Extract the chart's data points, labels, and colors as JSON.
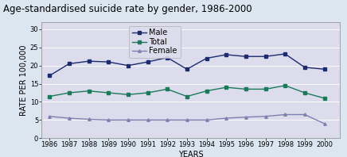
{
  "title": "Age-standardised suicide rate by gender, 1986-2000",
  "years": [
    1986,
    1987,
    1988,
    1989,
    1990,
    1991,
    1992,
    1993,
    1994,
    1995,
    1996,
    1997,
    1998,
    1999,
    2000
  ],
  "male": [
    17.2,
    20.5,
    21.2,
    21.0,
    20.0,
    21.0,
    22.2,
    19.0,
    22.0,
    23.0,
    22.5,
    22.5,
    23.2,
    19.5,
    19.0
  ],
  "total": [
    11.5,
    12.5,
    13.0,
    12.5,
    12.0,
    12.5,
    13.5,
    11.5,
    13.0,
    14.0,
    13.5,
    13.5,
    14.5,
    12.5,
    11.0
  ],
  "female": [
    6.0,
    5.5,
    5.2,
    5.0,
    5.0,
    5.0,
    5.0,
    5.0,
    5.0,
    5.5,
    5.8,
    6.0,
    6.5,
    6.5,
    4.0
  ],
  "male_color": "#1c2b6e",
  "total_color": "#1a7a5a",
  "female_color": "#8080b0",
  "plot_bg_color": "#dcdcec",
  "outer_bg_color": "#dce6f1",
  "title_bg_color": "#f0f0f0",
  "ylabel": "RATE PER 100,000",
  "xlabel": "YEARS",
  "ylim": [
    0,
    32
  ],
  "yticks": [
    0,
    5,
    10,
    15,
    20,
    25,
    30
  ],
  "title_fontsize": 8.5,
  "axis_label_fontsize": 7,
  "tick_fontsize": 6,
  "legend_fontsize": 7
}
